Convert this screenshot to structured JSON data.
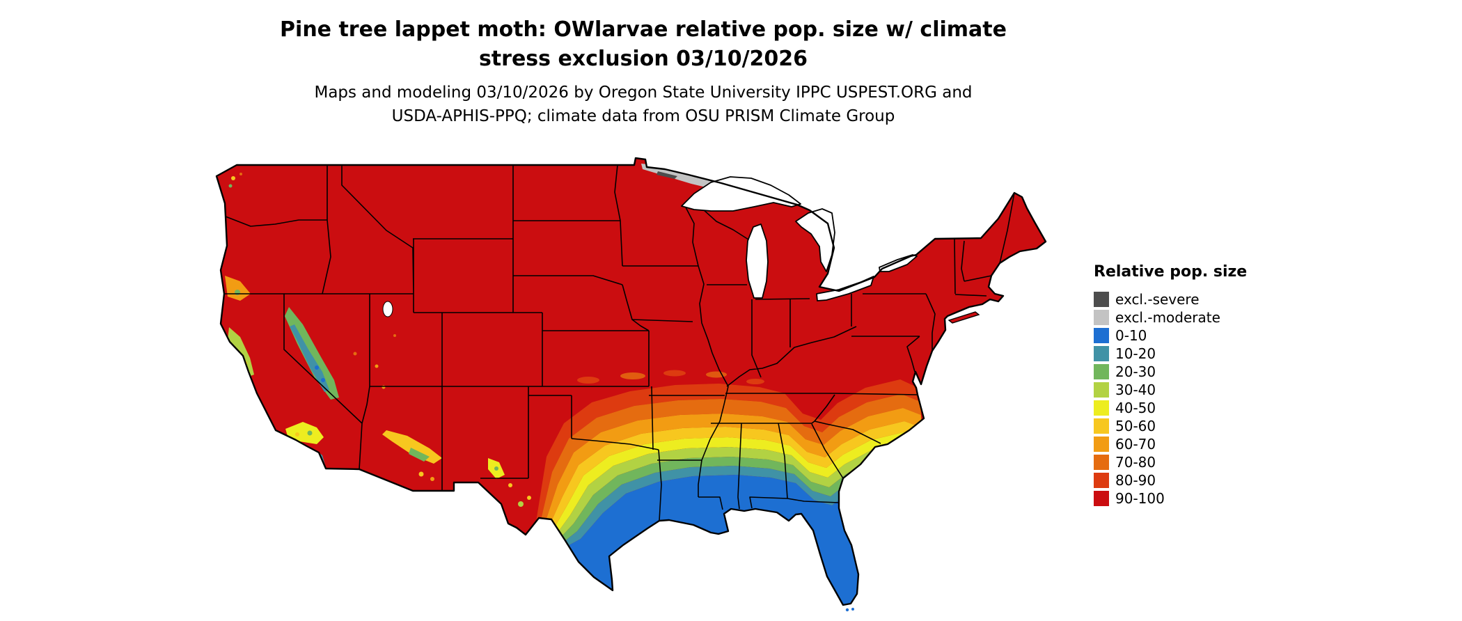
{
  "header": {
    "title_line1": "Pine tree lappet moth: OWlarvae relative pop. size w/ climate",
    "title_line2": "stress exclusion 03/10/2026",
    "subtitle_line1": "Maps and modeling 03/10/2026 by Oregon State University IPPC USPEST.ORG and",
    "subtitle_line2": "USDA-APHIS-PPQ; climate data from OSU PRISM Climate Group"
  },
  "legend": {
    "title": "Relative pop. size",
    "entries": [
      {
        "label": "excl.-severe",
        "color": "#4d4d4d"
      },
      {
        "label": "excl.-moderate",
        "color": "#c3c3c3"
      },
      {
        "label": "0-10",
        "color": "#1d6fd2"
      },
      {
        "label": "10-20",
        "color": "#4092a6"
      },
      {
        "label": "20-30",
        "color": "#71b65c"
      },
      {
        "label": "30-40",
        "color": "#b2d243"
      },
      {
        "label": "40-50",
        "color": "#eded20"
      },
      {
        "label": "50-60",
        "color": "#f7c71f"
      },
      {
        "label": "60-70",
        "color": "#f29c13"
      },
      {
        "label": "70-80",
        "color": "#e56c10"
      },
      {
        "label": "80-90",
        "color": "#dd3b10"
      },
      {
        "label": "90-100",
        "color": "#cb0d10"
      }
    ]
  },
  "chart_data": {
    "type": "heatmap",
    "title": "Pine tree lappet moth: OWlarvae relative pop. size w/ climate stress exclusion 03/10/2026",
    "legend_title": "Relative pop. size",
    "region": "Contiguous United States",
    "categories": [
      "excl.-severe",
      "excl.-moderate",
      "0-10",
      "10-20",
      "20-30",
      "30-40",
      "40-50",
      "50-60",
      "60-70",
      "70-80",
      "80-90",
      "90-100"
    ],
    "colors": [
      "#4d4d4d",
      "#c3c3c3",
      "#1d6fd2",
      "#4092a6",
      "#71b65c",
      "#b2d243",
      "#eded20",
      "#f7c71f",
      "#f29c13",
      "#e56c10",
      "#dd3b10",
      "#cb0d10"
    ],
    "spatial_pattern": "Northern and central US almost entirely in the 90-100 class (red); values grade southward through 80-90, 70-80, 60-70, 50-60, 40-50, 30-40, 20-30 and 10-20 bands across the mid-South; 0-10 (blue) covers southern Texas, the Gulf Coast and all of Florida; a red tongue follows the southern Appalachians; gray excl.-moderate area along the northern Minnesota border; mixed mountain classes in California, Arizona and New Mexico."
  }
}
